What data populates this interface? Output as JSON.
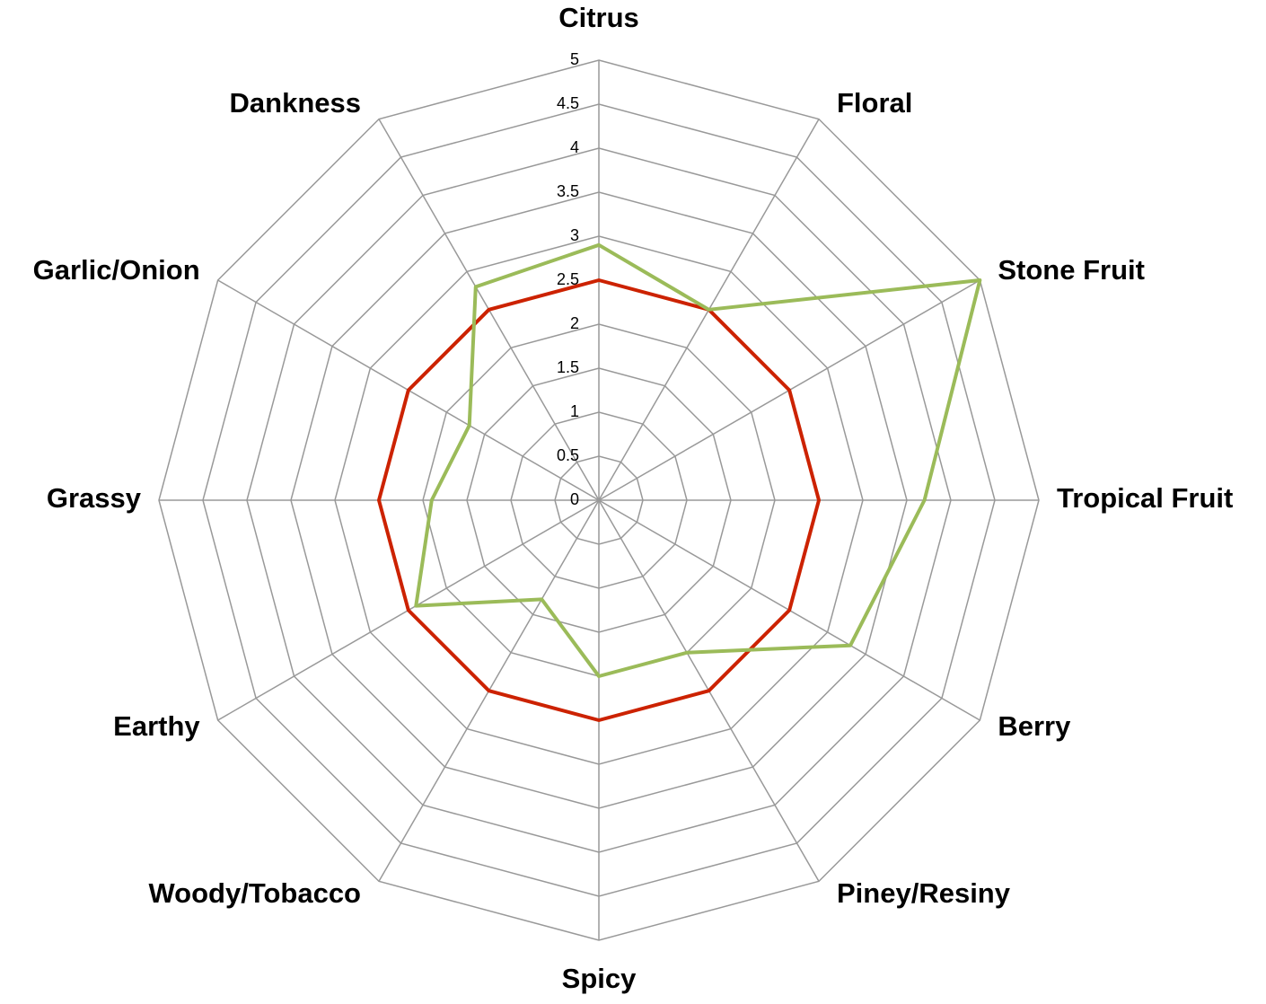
{
  "chart_data": {
    "type": "radar",
    "categories": [
      "Citrus",
      "Floral",
      "Stone Fruit",
      "Tropical Fruit",
      "Berry",
      "Piney/Resiny",
      "Spicy",
      "Woody/Tobacco",
      "Earthy",
      "Grassy",
      "Garlic/Onion",
      "Dankness"
    ],
    "series": [
      {
        "color": "#cc2200",
        "values": [
          2.5,
          2.5,
          2.5,
          2.5,
          2.5,
          2.5,
          2.5,
          2.5,
          2.5,
          2.5,
          2.5,
          2.5
        ]
      },
      {
        "color": "#9bbb59",
        "values": [
          2.9,
          2.5,
          5,
          3.7,
          3.3,
          2,
          2,
          1.3,
          2.4,
          1.9,
          1.7,
          2.8
        ]
      }
    ],
    "ylim": [
      0,
      5
    ],
    "yticks": [
      0,
      0.5,
      1,
      1.5,
      2,
      2.5,
      3,
      3.5,
      4,
      4.5,
      5
    ],
    "grid": true
  }
}
